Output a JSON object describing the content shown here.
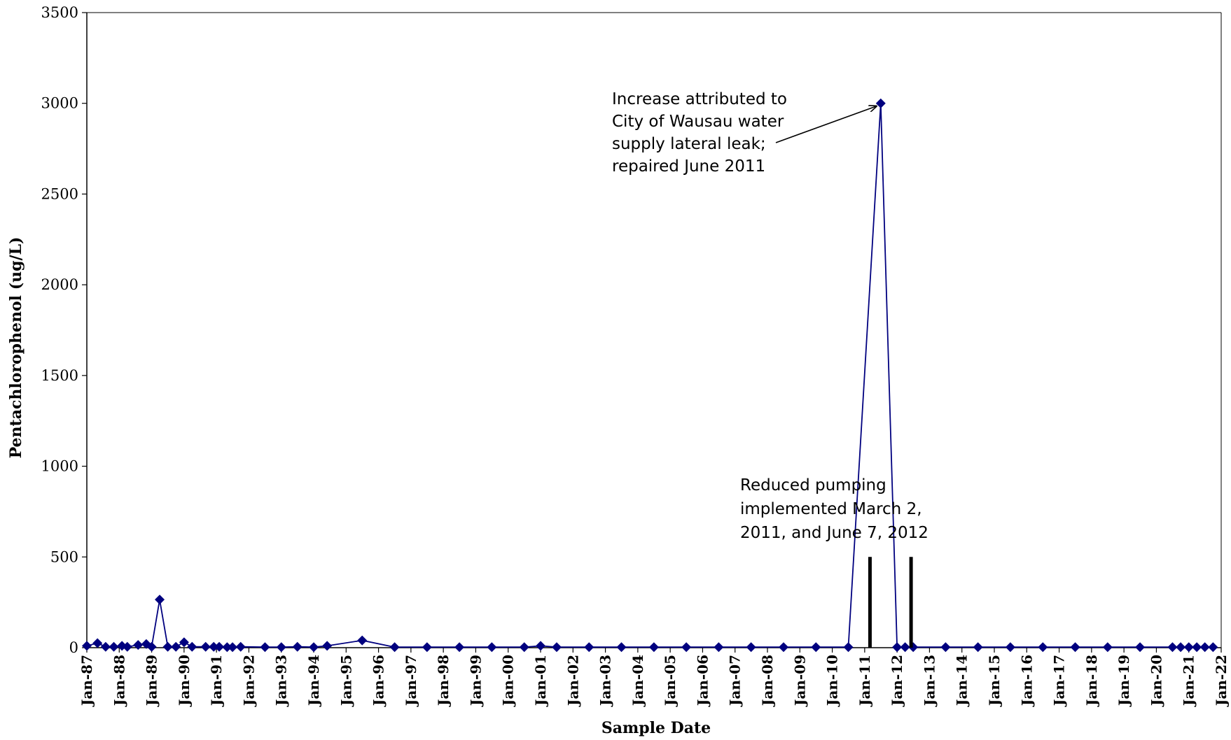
{
  "chart_data": {
    "type": "line",
    "title": "",
    "xlabel": "Sample Date",
    "ylabel": "Pentachlorophenol (ug/L)",
    "ylim": [
      0,
      3500
    ],
    "yticks": [
      0,
      500,
      1000,
      1500,
      2000,
      2500,
      3000,
      3500
    ],
    "xlim": [
      "1987-01-01",
      "2022-01-01"
    ],
    "xticks": [
      "Jan-87",
      "Jan-88",
      "Jan-89",
      "Jan-90",
      "Jan-91",
      "Jan-92",
      "Jan-93",
      "Jan-94",
      "Jan-95",
      "Jan-96",
      "Jan-97",
      "Jan-98",
      "Jan-99",
      "Jan-00",
      "Jan-01",
      "Jan-02",
      "Jan-03",
      "Jan-04",
      "Jan-05",
      "Jan-06",
      "Jan-07",
      "Jan-08",
      "Jan-09",
      "Jan-10",
      "Jan-11",
      "Jan-12",
      "Jan-13",
      "Jan-14",
      "Jan-15",
      "Jan-16",
      "Jan-17",
      "Jan-18",
      "Jan-19",
      "Jan-20",
      "Jan-21",
      "Jan-22"
    ],
    "grid": false,
    "legend": "none",
    "colors": {
      "series": "#00007F",
      "markers": "#00007F",
      "vertical_markers": "#000000"
    },
    "series": [
      {
        "x": [
          "1987-01-01",
          "1987-05-01",
          "1987-08-01",
          "1987-11-01",
          "1988-02-01",
          "1988-04-01",
          "1988-08-01",
          "1988-11-01",
          "1989-01-01",
          "1989-04-01",
          "1989-07-01",
          "1989-10-01",
          "1990-01-01",
          "1990-04-01",
          "1990-09-01",
          "1990-12-01",
          "1991-02-01",
          "1991-05-01",
          "1991-07-01",
          "1991-10-01",
          "1992-07-01",
          "1993-01-01",
          "1993-07-01",
          "1994-01-01",
          "1994-06-01",
          "1995-07-01",
          "1996-07-01",
          "1997-07-01",
          "1998-07-01",
          "1999-07-01",
          "2000-07-01",
          "2001-01-01",
          "2001-07-01",
          "2002-07-01",
          "2003-07-01",
          "2004-07-01",
          "2005-07-01",
          "2006-07-01",
          "2007-07-01",
          "2008-07-01",
          "2009-07-01",
          "2010-07-01",
          "2011-07-01",
          "2012-01-01",
          "2012-04-01",
          "2012-07-01",
          "2013-07-01",
          "2014-07-01",
          "2015-07-01",
          "2016-07-01",
          "2017-07-01",
          "2018-07-01",
          "2019-07-01",
          "2020-07-01",
          "2020-10-01",
          "2021-01-01",
          "2021-04-01",
          "2021-07-01",
          "2021-10-01"
        ],
        "y": [
          10,
          25,
          5,
          5,
          10,
          5,
          15,
          20,
          5,
          265,
          5,
          5,
          30,
          5,
          5,
          5,
          5,
          3,
          3,
          5,
          3,
          3,
          5,
          3,
          10,
          40,
          3,
          3,
          3,
          3,
          3,
          10,
          3,
          3,
          3,
          3,
          3,
          3,
          3,
          3,
          3,
          3,
          3000,
          3,
          3,
          3,
          3,
          3,
          3,
          3,
          3,
          3,
          3,
          3,
          3,
          3,
          3,
          3,
          3
        ]
      }
    ],
    "vertical_markers": [
      {
        "x": "2011-03-02",
        "y": 500
      },
      {
        "x": "2012-06-07",
        "y": 500
      }
    ],
    "annotations": [
      {
        "lines": [
          "Increase attributed to",
          "City of Wausau water",
          "supply lateral leak;",
          "repaired June 2011"
        ],
        "arrow_to": {
          "x": "2011-07-01",
          "y": 3000
        }
      },
      {
        "lines": [
          "Reduced pumping",
          "implemented March 2,",
          "2011, and June 7, 2012"
        ]
      }
    ]
  }
}
